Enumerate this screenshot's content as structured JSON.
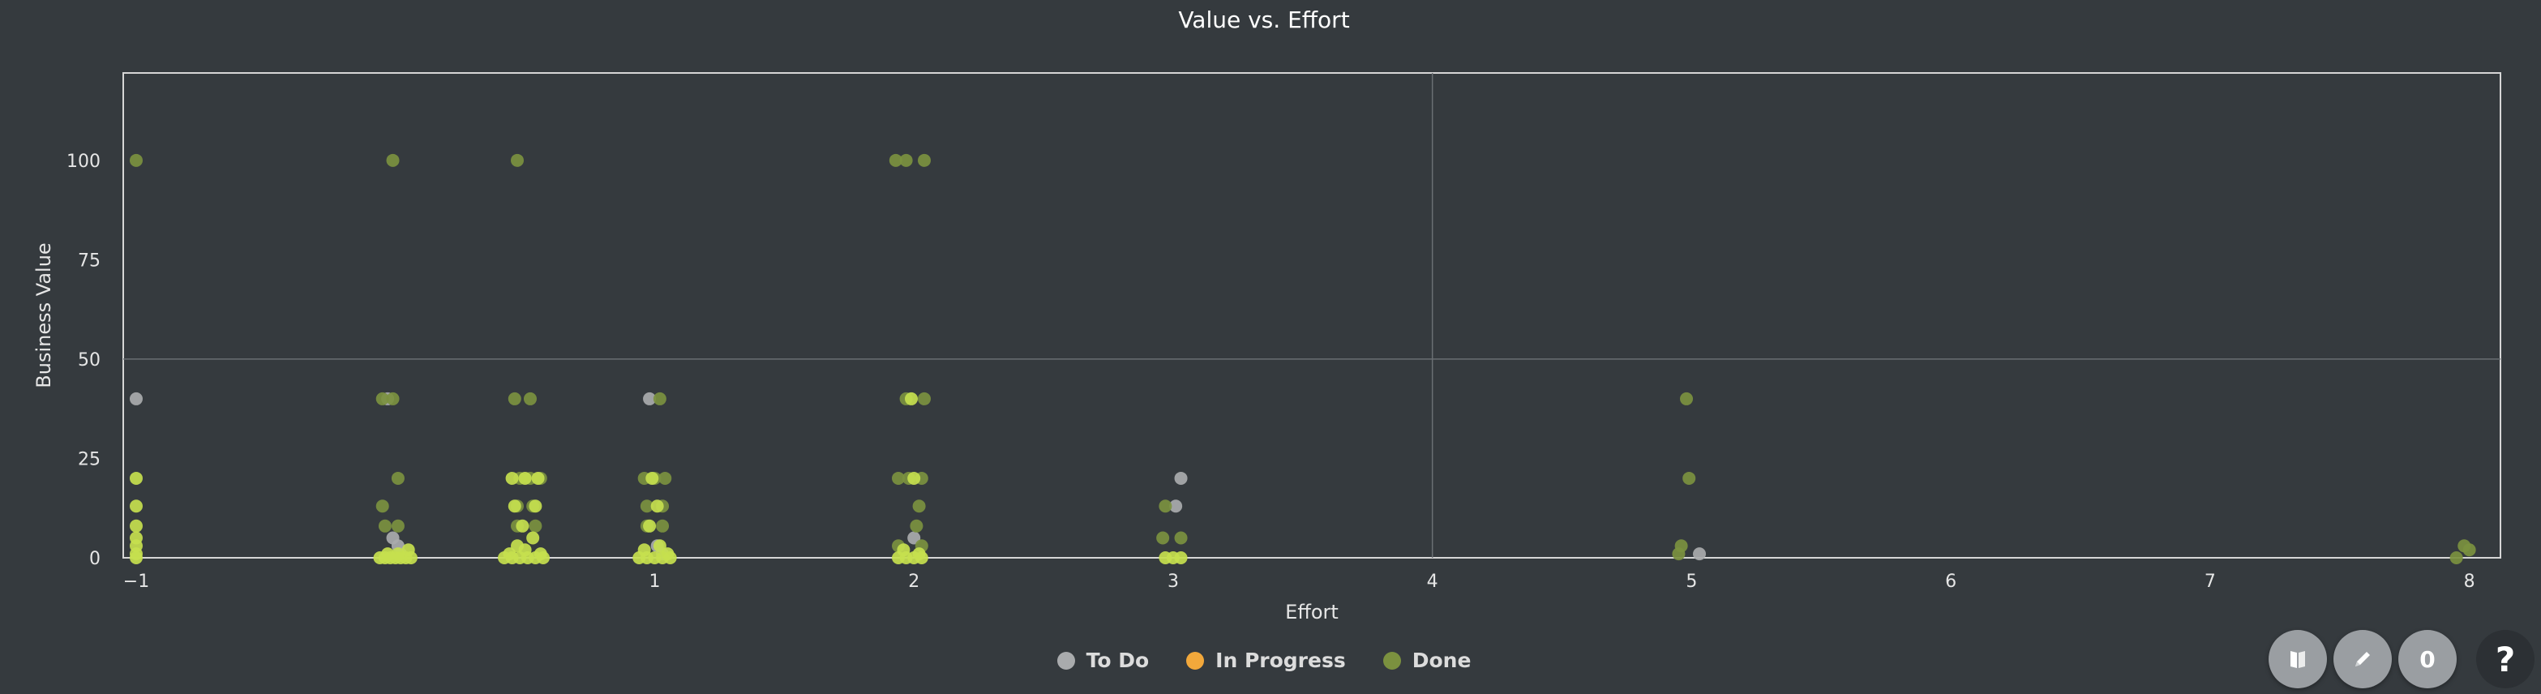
{
  "chart_data": {
    "type": "scatter",
    "title": "Value vs. Effort",
    "xlabel": "Effort",
    "ylabel": "Business Value",
    "xlim": [
      -1.05,
      8.12
    ],
    "ylim": [
      0,
      122
    ],
    "x_ticks": [
      -1,
      1,
      2,
      3,
      4,
      5,
      6,
      7,
      8
    ],
    "y_ticks": [
      0,
      25,
      50,
      75,
      100
    ],
    "grid_lines": {
      "x": [
        4
      ],
      "y": [
        50
      ]
    },
    "legend_position": "bottom-center",
    "series": [
      {
        "name": "To Do",
        "color": "#a9abad",
        "points": [
          [
            -1,
            40
          ],
          [
            -0.03,
            40
          ],
          [
            -0.01,
            5
          ],
          [
            0.01,
            3
          ],
          [
            0.98,
            40
          ],
          [
            1.01,
            3
          ],
          [
            2.0,
            5
          ],
          [
            3.03,
            20
          ],
          [
            3.01,
            13
          ],
          [
            5.03,
            1
          ],
          [
            0.02,
            1
          ],
          [
            1.03,
            1
          ]
        ]
      },
      {
        "name": "In Progress",
        "color": "#f2a83b",
        "points": []
      },
      {
        "name": "Done",
        "color": "#7b913f",
        "points": [
          [
            -1,
            100
          ],
          [
            -0.01,
            100
          ],
          [
            0.47,
            100
          ],
          [
            1.93,
            100
          ],
          [
            1.97,
            100
          ],
          [
            2.04,
            100
          ],
          [
            -0.05,
            40
          ],
          [
            -0.01,
            40
          ],
          [
            0.46,
            40
          ],
          [
            0.52,
            40
          ],
          [
            1.02,
            40
          ],
          [
            1.97,
            40
          ],
          [
            2.04,
            40
          ],
          [
            4.98,
            40
          ],
          [
            0.01,
            20
          ],
          [
            0.48,
            20
          ],
          [
            0.52,
            20
          ],
          [
            0.56,
            20
          ],
          [
            0.96,
            20
          ],
          [
            1.0,
            20
          ],
          [
            1.04,
            20
          ],
          [
            1.94,
            20
          ],
          [
            1.98,
            20
          ],
          [
            2.03,
            20
          ],
          [
            4.99,
            20
          ],
          [
            -0.05,
            13
          ],
          [
            0.47,
            13
          ],
          [
            0.53,
            13
          ],
          [
            0.97,
            13
          ],
          [
            1.03,
            13
          ],
          [
            2.02,
            13
          ],
          [
            2.97,
            13
          ],
          [
            -0.04,
            8
          ],
          [
            0.01,
            8
          ],
          [
            0.47,
            8
          ],
          [
            0.54,
            8
          ],
          [
            0.97,
            8
          ],
          [
            1.03,
            8
          ],
          [
            2.01,
            8
          ],
          [
            2.96,
            5
          ],
          [
            3.03,
            5
          ],
          [
            1.94,
            3
          ],
          [
            2.03,
            3
          ],
          [
            4.96,
            3
          ],
          [
            4.95,
            1
          ],
          [
            7.95,
            0
          ],
          [
            7.98,
            3
          ],
          [
            8.0,
            2
          ]
        ]
      },
      {
        "name": "",
        "color": "#c6e04e",
        "points": [
          [
            -1,
            20
          ],
          [
            -1,
            13
          ],
          [
            -1,
            8
          ],
          [
            -1,
            5
          ],
          [
            -1,
            3
          ],
          [
            -1,
            1
          ],
          [
            -1,
            0
          ],
          [
            -0.06,
            0
          ],
          [
            -0.04,
            0
          ],
          [
            -0.02,
            0
          ],
          [
            0.0,
            0
          ],
          [
            0.02,
            0
          ],
          [
            0.04,
            0
          ],
          [
            0.06,
            0
          ],
          [
            -0.03,
            1
          ],
          [
            0.01,
            1
          ],
          [
            0.05,
            2
          ],
          [
            0.42,
            0
          ],
          [
            0.45,
            0
          ],
          [
            0.48,
            0
          ],
          [
            0.51,
            0
          ],
          [
            0.54,
            0
          ],
          [
            0.57,
            0
          ],
          [
            0.44,
            1
          ],
          [
            0.5,
            2
          ],
          [
            0.56,
            1
          ],
          [
            0.47,
            3
          ],
          [
            0.53,
            5
          ],
          [
            0.46,
            13
          ],
          [
            0.54,
            13
          ],
          [
            0.45,
            20
          ],
          [
            0.5,
            20
          ],
          [
            0.55,
            20
          ],
          [
            0.49,
            8
          ],
          [
            0.94,
            0
          ],
          [
            0.97,
            0
          ],
          [
            1.0,
            0
          ],
          [
            1.03,
            0
          ],
          [
            1.06,
            0
          ],
          [
            0.96,
            2
          ],
          [
            1.02,
            3
          ],
          [
            1.05,
            1
          ],
          [
            0.98,
            8
          ],
          [
            1.01,
            13
          ],
          [
            0.99,
            20
          ],
          [
            1.94,
            0
          ],
          [
            1.97,
            0
          ],
          [
            2.0,
            0
          ],
          [
            2.03,
            0
          ],
          [
            1.96,
            2
          ],
          [
            2.02,
            1
          ],
          [
            2.0,
            20
          ],
          [
            1.99,
            40
          ],
          [
            2.97,
            0
          ],
          [
            3.0,
            0
          ],
          [
            3.03,
            0
          ]
        ]
      }
    ]
  },
  "legend": [
    {
      "label": "To Do",
      "color": "#a9abad"
    },
    {
      "label": "In Progress",
      "color": "#f2a83b"
    },
    {
      "label": "Done",
      "color": "#7b913f"
    }
  ],
  "toolbar": {
    "count_label": "0",
    "help_label": "?",
    "book_icon": "book-icon",
    "pencil_icon": "pencil-icon"
  }
}
